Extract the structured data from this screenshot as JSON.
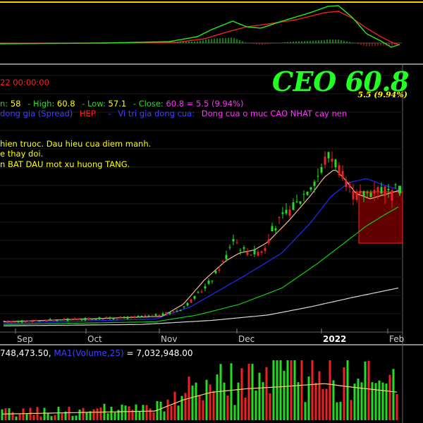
{
  "colors": {
    "background": "#000000",
    "frame": "#777777",
    "grid": "#1a1a1a",
    "up": "#22dd22",
    "down": "#ee2222",
    "ma_orange": "#f7b98c",
    "ma_blue": "#1f2bff",
    "ma_green": "#15c915",
    "ma_white": "#d8d8d8",
    "macd_green": "#22ee22",
    "macd_red": "#ee2222",
    "yellow": "#ffff00",
    "red": "#ff2020",
    "label_green": "#22dd22",
    "label_blue": "#4040ff",
    "label_magenta": "#ff33ff",
    "zone_fill": "#7a0000",
    "zone_border": "#ff2020"
  },
  "header": {
    "date": "22 00:00:00",
    "ticker": "CEO 60.8",
    "ticker_change": "5.5 (9.94%)",
    "ohlc": {
      "open_label": "n:",
      "open_value": "58",
      "high_label": "- High:",
      "high_value": "60.8",
      "low_label": "- Low:",
      "low_value": "57.1",
      "close_label": "- Close:",
      "close_value": "60.8 = 5.5  (9.94%)"
    },
    "legend_line": {
      "spread": "dong gia (Spread)",
      "spread_value": "HEP",
      "dash": "-",
      "position": "Vi tri gia dong cua:",
      "position_value": "Dong cua o muc CAO NHAT cay nen"
    },
    "notes": [
      "hien truoc. Dau hieu cua diem manh.",
      "e thay doi.",
      "n BAT DAU mot xu huong TANG."
    ]
  },
  "volume_header": {
    "volume_value": "748,473.50,",
    "ma_label": "MA1(Volume,25)",
    "ma_value": "= 7,032,948.00"
  },
  "chart_data": {
    "type": "candlestick",
    "title": "CEO 60.8",
    "x_tick_labels": [
      "Sep",
      "Oct",
      "Nov",
      "Dec",
      "2022",
      "Feb"
    ],
    "price_series_approx": [
      {
        "period": "Sep",
        "close": 11
      },
      {
        "period": "Oct",
        "close": 12
      },
      {
        "period": "early Nov",
        "close": 14
      },
      {
        "period": "late Nov",
        "close": 27
      },
      {
        "period": "early Dec",
        "close": 42
      },
      {
        "period": "mid Dec",
        "close": 36
      },
      {
        "period": "late Dec",
        "close": 55
      },
      {
        "period": "early Jan",
        "close": 68
      },
      {
        "period": "mid Jan",
        "close": 72
      },
      {
        "period": "late Jan",
        "close": 58
      },
      {
        "period": "Feb",
        "close": 60.8
      }
    ],
    "last_bar": {
      "open": 58,
      "high": 60.8,
      "low": 57.1,
      "close": 60.8,
      "change": 5.5,
      "change_pct": 9.94
    },
    "moving_averages": [
      "orange",
      "blue",
      "green",
      "white"
    ],
    "volume_ma": {
      "name": "MA1(Volume,25)",
      "value": 7032948.0
    },
    "indicator_panel": "MACD-style oscillator with green and red lines and histogram",
    "grid": true
  }
}
